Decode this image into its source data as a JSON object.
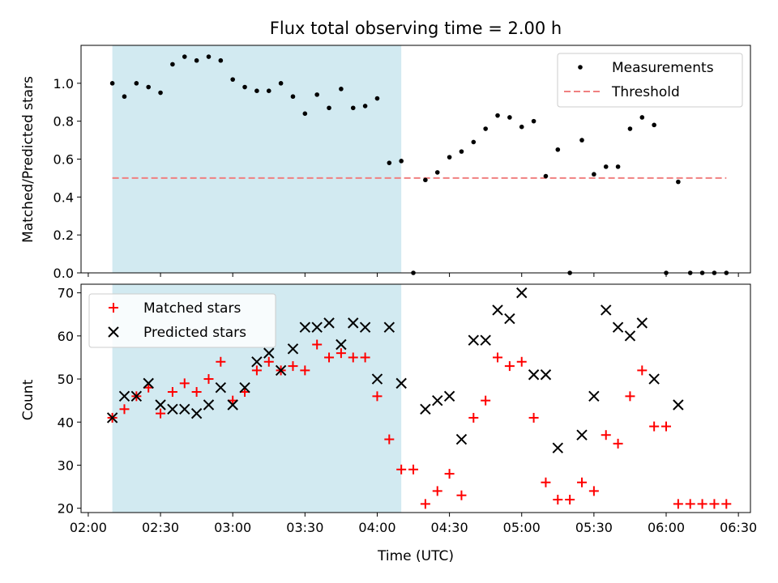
{
  "chart_data": {
    "type": "scatter",
    "title": "Flux total observing time = 2.00 h",
    "xlabel": "Time (UTC)",
    "x_ticks": [
      "02:00",
      "02:30",
      "03:00",
      "03:30",
      "04:00",
      "04:30",
      "05:00",
      "05:30",
      "06:00",
      "06:30"
    ],
    "x_range": [
      "01:57",
      "06:35"
    ],
    "shaded_interval": [
      "02:10",
      "04:10"
    ],
    "shade_color": "#add8e6",
    "top": {
      "ylabel": "Matched/Predicted stars",
      "ylim": [
        0,
        1.2
      ],
      "y_ticks": [
        "0.0",
        "0.2",
        "0.4",
        "0.6",
        "0.8",
        "1.0"
      ],
      "legend_position": "upper right",
      "threshold": {
        "name": "Threshold",
        "value": 0.5,
        "x_start": "02:10",
        "x_end": "06:25",
        "color": "#f08080"
      },
      "series": [
        {
          "name": "Measurements",
          "color": "#000000",
          "x": [
            "02:10",
            "02:15",
            "02:20",
            "02:25",
            "02:30",
            "02:35",
            "02:40",
            "02:45",
            "02:50",
            "02:55",
            "03:00",
            "03:05",
            "03:10",
            "03:15",
            "03:20",
            "03:25",
            "03:30",
            "03:35",
            "03:40",
            "03:45",
            "03:50",
            "03:55",
            "04:00",
            "04:05",
            "04:10",
            "04:15",
            "04:20",
            "04:25",
            "04:30",
            "04:35",
            "04:40",
            "04:45",
            "04:50",
            "04:55",
            "05:00",
            "05:05",
            "05:10",
            "05:15",
            "05:20",
            "05:25",
            "05:30",
            "05:35",
            "05:40",
            "05:45",
            "05:50",
            "05:55",
            "06:00",
            "06:05",
            "06:10",
            "06:15",
            "06:20",
            "06:25"
          ],
          "y": [
            1.0,
            0.93,
            1.0,
            0.98,
            0.95,
            1.1,
            1.14,
            1.12,
            1.14,
            1.12,
            1.02,
            0.98,
            0.96,
            0.96,
            1.0,
            0.93,
            0.84,
            0.94,
            0.87,
            0.97,
            0.87,
            0.88,
            0.92,
            0.58,
            0.59,
            0.0,
            0.49,
            0.53,
            0.61,
            0.64,
            0.69,
            0.76,
            0.83,
            0.82,
            0.77,
            0.8,
            0.51,
            0.65,
            0.0,
            0.7,
            0.52,
            0.56,
            0.56,
            0.76,
            0.82,
            0.78,
            0.0,
            0.48,
            0.0,
            0.0,
            0.0,
            0.0
          ]
        }
      ]
    },
    "bottom": {
      "ylabel": "Count",
      "ylim": [
        19,
        72
      ],
      "y_ticks": [
        "20",
        "30",
        "40",
        "50",
        "60",
        "70"
      ],
      "legend_position": "upper left",
      "series": [
        {
          "name": "Matched stars",
          "color": "#ff0000",
          "marker": "+",
          "x": [
            "02:10",
            "02:15",
            "02:20",
            "02:25",
            "02:30",
            "02:35",
            "02:40",
            "02:45",
            "02:50",
            "02:55",
            "03:00",
            "03:05",
            "03:10",
            "03:15",
            "03:20",
            "03:25",
            "03:30",
            "03:35",
            "03:40",
            "03:45",
            "03:50",
            "03:55",
            "04:00",
            "04:05",
            "04:10",
            "04:15",
            "04:20",
            "04:25",
            "04:30",
            "04:35",
            "04:40",
            "04:45",
            "04:50",
            "04:55",
            "05:00",
            "05:05",
            "05:10",
            "05:15",
            "05:20",
            "05:25",
            "05:30",
            "05:35",
            "05:40",
            "05:45",
            "05:50",
            "05:55",
            "06:00",
            "06:05",
            "06:10",
            "06:15",
            "06:20",
            "06:25"
          ],
          "y": [
            41,
            43,
            46,
            48,
            42,
            47,
            49,
            47,
            50,
            54,
            45,
            47,
            52,
            54,
            52,
            53,
            52,
            58,
            55,
            56,
            55,
            55,
            46,
            36,
            29,
            29,
            21,
            24,
            28,
            23,
            41,
            45,
            55,
            53,
            54,
            41,
            26,
            22,
            22,
            26,
            24,
            37,
            35,
            46,
            52,
            39,
            39,
            21,
            21,
            21,
            21,
            21
          ]
        },
        {
          "name": "Predicted stars",
          "color": "#000000",
          "marker": "x",
          "x": [
            "02:10",
            "02:15",
            "02:20",
            "02:25",
            "02:30",
            "02:35",
            "02:40",
            "02:45",
            "02:50",
            "02:55",
            "03:00",
            "03:05",
            "03:10",
            "03:15",
            "03:20",
            "03:25",
            "03:30",
            "03:35",
            "03:40",
            "03:45",
            "03:50",
            "03:55",
            "04:00",
            "04:05",
            "04:10",
            "04:20",
            "04:25",
            "04:30",
            "04:35",
            "04:40",
            "04:45",
            "04:50",
            "04:55",
            "05:00",
            "05:05",
            "05:10",
            "05:15",
            "05:25",
            "05:30",
            "05:35",
            "05:40",
            "05:45",
            "05:50",
            "05:55",
            "06:05"
          ],
          "y": [
            41,
            46,
            46,
            49,
            44,
            43,
            43,
            42,
            44,
            48,
            44,
            48,
            54,
            56,
            52,
            57,
            62,
            62,
            63,
            58,
            63,
            62,
            50,
            62,
            49,
            43,
            45,
            46,
            36,
            59,
            59,
            66,
            64,
            70,
            51,
            51,
            34,
            37,
            46,
            66,
            62,
            60,
            63,
            50,
            44
          ]
        }
      ]
    }
  }
}
